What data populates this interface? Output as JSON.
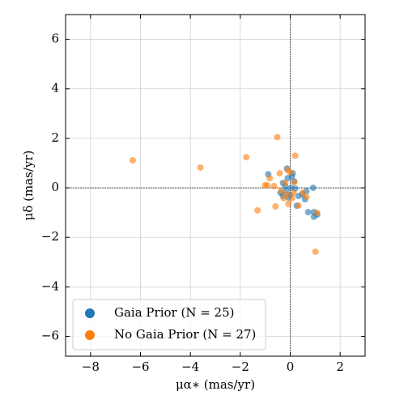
{
  "chart_data": {
    "type": "scatter",
    "xlabel": "μα∗ (mas/yr)",
    "ylabel": "μδ (mas/yr)",
    "xlim": [
      -9,
      3
    ],
    "ylim": [
      -6.8,
      7
    ],
    "xticks": [
      {
        "value": -8,
        "label": "−8"
      },
      {
        "value": -6,
        "label": "−6"
      },
      {
        "value": -4,
        "label": "−4"
      },
      {
        "value": -2,
        "label": "−2"
      },
      0,
      2
    ],
    "yticks": [
      {
        "value": -6,
        "label": "−6"
      },
      {
        "value": -4,
        "label": "−4"
      },
      {
        "value": -2,
        "label": "−2"
      },
      0,
      2,
      4,
      6
    ],
    "grid": true,
    "legend": "lower left",
    "series": [
      {
        "name": "Gaia Prior (N = 25)",
        "color": "#1f77b4",
        "x": [
          -0.88,
          -0.13,
          0.1,
          0.07,
          -0.29,
          -0.16,
          0,
          0.2,
          0.33,
          0.49,
          0.59,
          -0.07,
          -0.2,
          0.26,
          0.72,
          0.92,
          0.95,
          0.95,
          1.08,
          0.03,
          -0.1,
          -0.39,
          0.16,
          0.65,
          -0.29
        ],
        "values": [
          0.55,
          0.78,
          0.59,
          0.46,
          0.2,
          -0.13,
          -0.29,
          -0.03,
          -0.33,
          -0.26,
          -0.46,
          -0.39,
          0.07,
          -0.72,
          -0.98,
          0,
          -0.98,
          -1.17,
          -1.08,
          0,
          0.39,
          -0.2,
          0.26,
          -0.13,
          -0.33
        ]
      },
      {
        "name": "No Gaia Prior (N = 27)",
        "color": "#ff7f0e",
        "x": [
          -6.31,
          -3.6,
          -1.76,
          -0.52,
          0.2,
          -1.31,
          1.01,
          -1.01,
          -0.92,
          -0.42,
          -0.82,
          -0.59,
          -0.2,
          -0.1,
          0,
          -0.26,
          -0.07,
          0.13,
          0.33,
          0.49,
          0.65,
          1.08,
          -0.36,
          0.16,
          -0.13,
          0.07,
          -0.65
        ],
        "values": [
          1.11,
          0.82,
          1.24,
          2.05,
          1.3,
          -0.91,
          -2.58,
          0.1,
          0.1,
          0.59,
          0.39,
          -0.75,
          0.2,
          0.72,
          0.62,
          -0.42,
          -0.65,
          -0.2,
          -0.72,
          -0.2,
          -0.36,
          -1.01,
          -0.13,
          0.23,
          -0.26,
          -0.42,
          0.07
        ]
      }
    ]
  }
}
